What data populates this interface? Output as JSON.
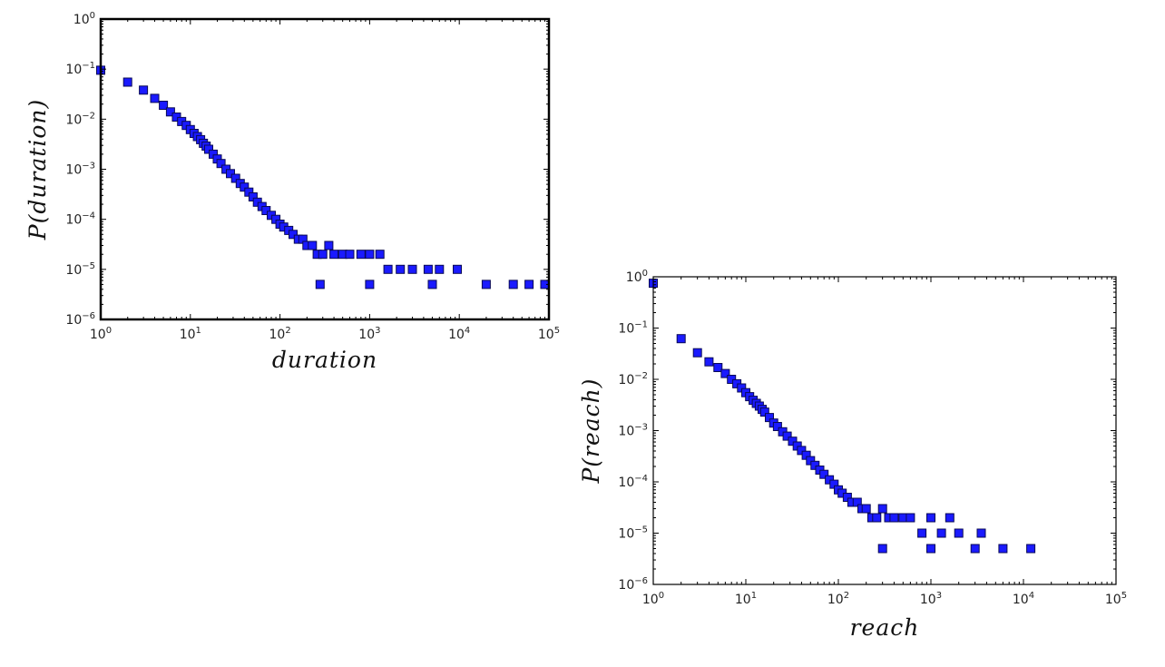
{
  "chart_data": [
    {
      "type": "scatter",
      "xlabel": "duration",
      "ylabel": "P(duration)",
      "x_scale": "log",
      "y_scale": "log",
      "xlim": [
        1,
        100000
      ],
      "ylim": [
        1e-06,
        1
      ],
      "x_tick_labels": [
        "10^0",
        "10^1",
        "10^2",
        "10^3",
        "10^4",
        "10^5"
      ],
      "y_tick_labels": [
        "10^-6",
        "10^-5",
        "10^-4",
        "10^-3",
        "10^-2",
        "10^-1",
        "10^0"
      ],
      "marker": "square",
      "marker_color": "#1a1aff",
      "grid": false,
      "legend": "none",
      "series": [
        {
          "x": [
            1,
            2,
            3,
            4,
            5,
            6,
            7,
            8,
            9,
            10,
            11,
            12,
            13,
            14,
            15,
            16,
            18,
            20,
            22,
            25,
            28,
            32,
            36,
            40,
            45,
            50,
            56,
            63,
            70,
            80,
            90,
            100,
            110,
            125,
            140,
            160,
            180,
            200,
            230,
            260,
            300,
            350,
            400,
            500,
            600,
            800,
            1000,
            1300,
            1600,
            2200,
            3000,
            4500,
            6000,
            9500,
            280,
            1000,
            5000,
            20000,
            40000,
            60000,
            90000
          ],
          "y": [
            0.095,
            0.055,
            0.038,
            0.026,
            0.019,
            0.014,
            0.011,
            0.009,
            0.0075,
            0.0062,
            0.0052,
            0.0045,
            0.0039,
            0.0033,
            0.0029,
            0.0025,
            0.002,
            0.0016,
            0.0013,
            0.001,
            0.00082,
            0.00066,
            0.00052,
            0.00044,
            0.00035,
            0.00028,
            0.00022,
            0.00018,
            0.00015,
            0.00012,
            0.0001,
            8e-05,
            7e-05,
            6e-05,
            5e-05,
            4e-05,
            4e-05,
            3e-05,
            3e-05,
            2e-05,
            2e-05,
            3e-05,
            2e-05,
            2e-05,
            2e-05,
            2e-05,
            2e-05,
            2e-05,
            1e-05,
            1e-05,
            1e-05,
            1e-05,
            1e-05,
            1e-05,
            5e-06,
            5e-06,
            5e-06,
            5e-06,
            5e-06,
            5e-06,
            5e-06
          ]
        }
      ]
    },
    {
      "type": "scatter",
      "xlabel": "reach",
      "ylabel": "P(reach)",
      "x_scale": "log",
      "y_scale": "log",
      "xlim": [
        1,
        100000
      ],
      "ylim": [
        1e-06,
        1
      ],
      "x_tick_labels": [
        "10^0",
        "10^1",
        "10^2",
        "10^3",
        "10^4",
        "10^5"
      ],
      "y_tick_labels": [
        "10^-6",
        "10^-5",
        "10^-4",
        "10^-3",
        "10^-2",
        "10^-1",
        "10^0"
      ],
      "marker": "square",
      "marker_color": "#1a1aff",
      "grid": false,
      "legend": "none",
      "series": [
        {
          "x": [
            1,
            2,
            3,
            4,
            5,
            6,
            7,
            8,
            9,
            10,
            11,
            12,
            13,
            14,
            15,
            16,
            18,
            20,
            22,
            25,
            28,
            32,
            36,
            40,
            45,
            50,
            56,
            63,
            70,
            80,
            90,
            100,
            110,
            125,
            140,
            160,
            180,
            200,
            230,
            260,
            300,
            350,
            400,
            500,
            600,
            800,
            1000,
            1300,
            1600,
            2000,
            3500,
            300,
            1000,
            3000,
            6000,
            12000
          ],
          "y": [
            0.75,
            0.062,
            0.033,
            0.022,
            0.017,
            0.013,
            0.01,
            0.0082,
            0.0068,
            0.0055,
            0.0046,
            0.0039,
            0.0034,
            0.003,
            0.0026,
            0.0023,
            0.0018,
            0.0014,
            0.0012,
            0.00095,
            0.00078,
            0.00062,
            0.0005,
            0.00041,
            0.00033,
            0.00026,
            0.00021,
            0.00017,
            0.00014,
            0.00011,
            9e-05,
            7e-05,
            6e-05,
            5e-05,
            4e-05,
            4e-05,
            3e-05,
            3e-05,
            2e-05,
            2e-05,
            3e-05,
            2e-05,
            2e-05,
            2e-05,
            2e-05,
            1e-05,
            2e-05,
            1e-05,
            2e-05,
            1e-05,
            1e-05,
            5e-06,
            5e-06,
            5e-06,
            5e-06,
            5e-06
          ]
        }
      ]
    }
  ]
}
